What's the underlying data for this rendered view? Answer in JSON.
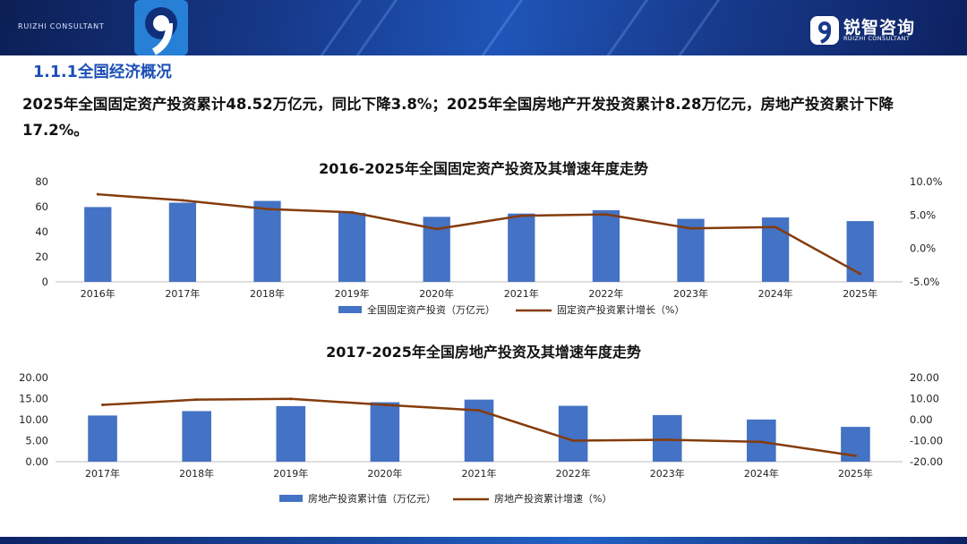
{
  "header": {
    "brand_en": "RUIZHI CONSULTANT",
    "logo_cn": "锐智咨询",
    "logo_en": "RUIZHI CONSULTANT",
    "accent": "#1c4fb5"
  },
  "section_title": "1.1.1全国经济概况",
  "summary": "2025年全国固定资产投资累计48.52万亿元，同比下降3.8%；2025年全国房地产开发投资累计8.28万亿元，房地产投资累计下降17.2%。",
  "chart_data": [
    {
      "type": "bar",
      "title": "2016-2025年全国固定资产投资及其增速年度走势",
      "categories": [
        "2016年",
        "2017年",
        "2018年",
        "2019年",
        "2020年",
        "2021年",
        "2022年",
        "2023年",
        "2024年",
        "2025年"
      ],
      "series": [
        {
          "name": "全国固定资产投资（万亿元）",
          "type": "bar",
          "axis": "left",
          "color": "#4472c4",
          "values": [
            59.7,
            63.2,
            64.6,
            55.1,
            51.9,
            54.5,
            57.2,
            50.3,
            51.4,
            48.5
          ]
        },
        {
          "name": "固定资产投资累计增长（%）",
          "type": "line",
          "axis": "right",
          "color": "#843c0c",
          "values": [
            8.1,
            7.2,
            5.9,
            5.4,
            2.9,
            4.9,
            5.1,
            3.0,
            3.2,
            -3.8
          ]
        }
      ],
      "left_axis": {
        "min": 0,
        "max": 80,
        "ticks": [
          "0",
          "20",
          "40",
          "60",
          "80"
        ]
      },
      "right_axis": {
        "min": -5,
        "max": 10,
        "ticks": [
          "-5.0%",
          "0.0%",
          "5.0%",
          "10.0%"
        ]
      },
      "grid": false,
      "legend_position": "bottom"
    },
    {
      "type": "bar",
      "title": "2017-2025年全国房地产投资及其增速年度走势",
      "categories": [
        "2017年",
        "2018年",
        "2019年",
        "2020年",
        "2021年",
        "2022年",
        "2023年",
        "2024年",
        "2025年"
      ],
      "series": [
        {
          "name": "房地产投资累计值（万亿元）",
          "type": "bar",
          "axis": "left",
          "color": "#4472c4",
          "values": [
            10.98,
            12.03,
            13.22,
            14.14,
            14.76,
            13.29,
            11.09,
            10.03,
            8.28
          ]
        },
        {
          "name": "房地产投资累计增速（%）",
          "type": "line",
          "axis": "right",
          "color": "#843c0c",
          "values": [
            7.0,
            9.5,
            9.9,
            7.0,
            4.4,
            -10.0,
            -9.6,
            -10.6,
            -17.2
          ]
        }
      ],
      "left_axis": {
        "min": 0,
        "max": 20,
        "ticks": [
          "0.00",
          "5.00",
          "10.00",
          "15.00",
          "20.00"
        ]
      },
      "right_axis": {
        "min": -20,
        "max": 20,
        "ticks": [
          "-20.00",
          "-10.00",
          "0.00",
          "10.00",
          "20.00"
        ]
      },
      "grid": false,
      "legend_position": "bottom"
    }
  ]
}
